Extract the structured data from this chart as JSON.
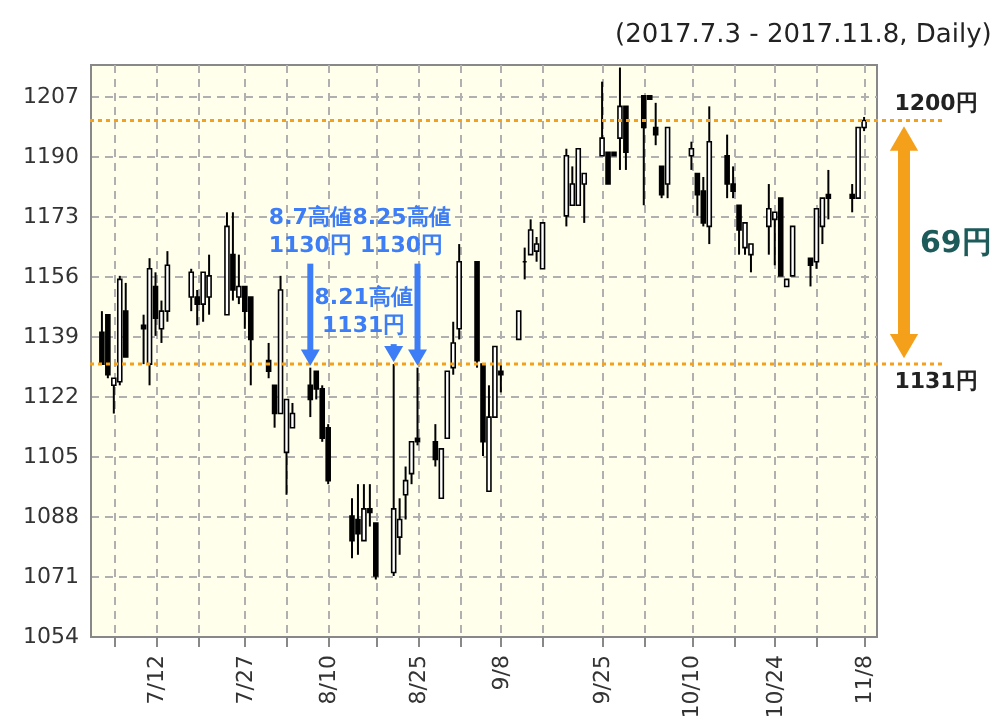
{
  "chart_data": {
    "type": "candlestick",
    "title": "(2017.7.3 - 2017.11.8, Daily)",
    "x": [
      "2017-07-03",
      "2017-07-04",
      "2017-07-05",
      "2017-07-06",
      "2017-07-07",
      "2017-07-10",
      "2017-07-11",
      "2017-07-12",
      "2017-07-13",
      "2017-07-14",
      "2017-07-18",
      "2017-07-19",
      "2017-07-20",
      "2017-07-21",
      "2017-07-24",
      "2017-07-25",
      "2017-07-26",
      "2017-07-27",
      "2017-07-28",
      "2017-07-31",
      "2017-08-01",
      "2017-08-02",
      "2017-08-03",
      "2017-08-04",
      "2017-08-07",
      "2017-08-08",
      "2017-08-09",
      "2017-08-10",
      "2017-08-14",
      "2017-08-15",
      "2017-08-16",
      "2017-08-17",
      "2017-08-18",
      "2017-08-21",
      "2017-08-22",
      "2017-08-23",
      "2017-08-24",
      "2017-08-25",
      "2017-08-28",
      "2017-08-29",
      "2017-08-30",
      "2017-08-31",
      "2017-09-01",
      "2017-09-04",
      "2017-09-05",
      "2017-09-06",
      "2017-09-07",
      "2017-09-08",
      "2017-09-11",
      "2017-09-12",
      "2017-09-13",
      "2017-09-14",
      "2017-09-15",
      "2017-09-19",
      "2017-09-20",
      "2017-09-21",
      "2017-09-22",
      "2017-09-25",
      "2017-09-26",
      "2017-09-27",
      "2017-09-28",
      "2017-09-29",
      "2017-10-02",
      "2017-10-03",
      "2017-10-04",
      "2017-10-05",
      "2017-10-06",
      "2017-10-10",
      "2017-10-11",
      "2017-10-12",
      "2017-10-13",
      "2017-10-16",
      "2017-10-17",
      "2017-10-18",
      "2017-10-19",
      "2017-10-20",
      "2017-10-23",
      "2017-10-24",
      "2017-10-25",
      "2017-10-26",
      "2017-10-27",
      "2017-10-30",
      "2017-10-31",
      "2017-11-01",
      "2017-11-02",
      "2017-11-06",
      "2017-11-07",
      "2017-11-08"
    ],
    "ohlc": [
      [
        1140,
        1146,
        1131,
        1131
      ],
      [
        1145,
        1145,
        1127,
        1128
      ],
      [
        1125,
        1127,
        1117,
        1127
      ],
      [
        1126,
        1156,
        1125,
        1155
      ],
      [
        1146,
        1154,
        1133,
        1133
      ],
      [
        1142,
        1145,
        1131,
        1141
      ],
      [
        1131,
        1161,
        1125,
        1158
      ],
      [
        1153,
        1157,
        1139,
        1144
      ],
      [
        1141,
        1149,
        1137,
        1146
      ],
      [
        1146,
        1163,
        1143,
        1159
      ],
      [
        1150,
        1158,
        1146,
        1157
      ],
      [
        1150,
        1152,
        1142,
        1148
      ],
      [
        1148,
        1157,
        1143,
        1157
      ],
      [
        1150,
        1162,
        1145,
        1156
      ],
      [
        1145,
        1174,
        1145,
        1170
      ],
      [
        1162,
        1174,
        1149,
        1152
      ],
      [
        1150,
        1162,
        1148,
        1153
      ],
      [
        1153,
        1153,
        1141,
        1146
      ],
      [
        1150,
        1150,
        1125,
        1138
      ],
      [
        1132,
        1137,
        1127,
        1129
      ],
      [
        1125,
        1125,
        1113,
        1117
      ],
      [
        1117,
        1156,
        1117,
        1152
      ],
      [
        1106,
        1121,
        1094,
        1121
      ],
      [
        1113,
        1120,
        1113,
        1117
      ],
      [
        1125,
        1130,
        1116,
        1121
      ],
      [
        1129,
        1129,
        1121,
        1124
      ],
      [
        1124,
        1125,
        1109,
        1110
      ],
      [
        1113,
        1114,
        1097,
        1098
      ],
      [
        1088,
        1093,
        1076,
        1081
      ],
      [
        1087,
        1097,
        1077,
        1083
      ],
      [
        1081,
        1097,
        1081,
        1090
      ],
      [
        1090,
        1097,
        1085,
        1089
      ],
      [
        1086,
        1086,
        1070,
        1071
      ],
      [
        1072,
        1131,
        1071,
        1090
      ],
      [
        1082,
        1093,
        1077,
        1087
      ],
      [
        1094,
        1102,
        1087,
        1098
      ],
      [
        1100,
        1109,
        1097,
        1109
      ],
      [
        1110,
        1130,
        1108,
        1109
      ],
      [
        1109,
        1114,
        1102,
        1104
      ],
      [
        1093,
        1107,
        1093,
        1107
      ],
      [
        1110,
        1129,
        1110,
        1129
      ],
      [
        1130,
        1143,
        1128,
        1137
      ],
      [
        1141,
        1165,
        1138,
        1160
      ],
      [
        1160,
        1160,
        1130,
        1132
      ],
      [
        1131,
        1131,
        1105,
        1109
      ],
      [
        1095,
        1125,
        1095,
        1116
      ],
      [
        1116,
        1136,
        1116,
        1136
      ],
      [
        1129,
        1131,
        1123,
        1128
      ],
      [
        1138,
        1146,
        1138,
        1146
      ],
      [
        1160,
        1164,
        1155,
        1160
      ],
      [
        1162,
        1172,
        1162,
        1169
      ],
      [
        1163,
        1167,
        1160,
        1165
      ],
      [
        1158,
        1171,
        1158,
        1171
      ],
      [
        1173,
        1192,
        1170,
        1190
      ],
      [
        1176,
        1187,
        1176,
        1182
      ],
      [
        1176,
        1192,
        1176,
        1192
      ],
      [
        1182,
        1185,
        1171,
        1185
      ],
      [
        1190,
        1211,
        1190,
        1195
      ],
      [
        1191,
        1191,
        1182,
        1182
      ],
      [
        1191,
        1191,
        1190,
        1190
      ],
      [
        1195,
        1215,
        1186,
        1204
      ],
      [
        1204,
        1204,
        1186,
        1191
      ],
      [
        1207,
        1207,
        1176,
        1198
      ],
      [
        1207,
        1207,
        1206,
        1206
      ],
      [
        1198,
        1205,
        1193,
        1196
      ],
      [
        1187,
        1187,
        1178,
        1179
      ],
      [
        1182,
        1198,
        1178,
        1198
      ],
      [
        1190,
        1194,
        1186,
        1192
      ],
      [
        1185,
        1185,
        1173,
        1179
      ],
      [
        1180,
        1184,
        1170,
        1171
      ],
      [
        1170,
        1204,
        1165,
        1194
      ],
      [
        1190,
        1196,
        1178,
        1182
      ],
      [
        1182,
        1187,
        1178,
        1180
      ],
      [
        1176,
        1176,
        1162,
        1169
      ],
      [
        1164,
        1171,
        1162,
        1171
      ],
      [
        1162,
        1165,
        1157,
        1165
      ],
      [
        1170,
        1182,
        1162,
        1175
      ],
      [
        1172,
        1174,
        1159,
        1174
      ],
      [
        1178,
        1178,
        1156,
        1156
      ],
      [
        1153,
        1155,
        1153,
        1155
      ],
      [
        1156,
        1170,
        1156,
        1170
      ],
      [
        1161,
        1161,
        1153,
        1159
      ],
      [
        1160,
        1175,
        1158,
        1175
      ],
      [
        1170,
        1178,
        1165,
        1178
      ],
      [
        1179,
        1186,
        1172,
        1178
      ],
      [
        1179,
        1182,
        1174,
        1178
      ],
      [
        1178,
        1198,
        1178,
        1198
      ],
      [
        1198,
        1201,
        1197,
        1200
      ]
    ],
    "xlim": [
      "2017-07-01",
      "2017-11-10"
    ],
    "ylim": [
      1054,
      1216
    ],
    "yticks": [
      1054,
      1071,
      1088,
      1105,
      1122,
      1139,
      1156,
      1173,
      1190,
      1207
    ],
    "xticks": [
      {
        "value": "2017-07-05",
        "label": null
      },
      {
        "value": "2017-07-12",
        "label": "7/12"
      },
      {
        "value": "2017-07-19",
        "label": null
      },
      {
        "value": "2017-07-27",
        "label": "7/27"
      },
      {
        "value": "2017-08-03",
        "label": null
      },
      {
        "value": "2017-08-10",
        "label": "8/10"
      },
      {
        "value": "2017-08-18",
        "label": null
      },
      {
        "value": "2017-08-25",
        "label": "8/25"
      },
      {
        "value": "2017-09-01",
        "label": null
      },
      {
        "value": "2017-09-08",
        "label": "9/8"
      },
      {
        "value": "2017-09-15",
        "label": null
      },
      {
        "value": "2017-09-25",
        "label": "9/25"
      },
      {
        "value": "2017-10-02",
        "label": null
      },
      {
        "value": "2017-10-10",
        "label": "10/10"
      },
      {
        "value": "2017-10-17",
        "label": null
      },
      {
        "value": "2017-10-24",
        "label": "10/24"
      },
      {
        "value": "2017-10-31",
        "label": null
      },
      {
        "value": "2017-11-08",
        "label": "11/8"
      }
    ],
    "grid": true,
    "annotations": [
      {
        "text": "8.7高値\n1130円",
        "x": "2017-08-07",
        "y": 1130
      },
      {
        "text": "8.21高値\n1131円",
        "x": "2017-08-21",
        "y": 1131
      },
      {
        "text": "8.25高値\n1130円",
        "x": "2017-08-25",
        "y": 1130
      },
      "69円"
    ],
    "ref_lines": [
      {
        "axis": "y",
        "value": 1200,
        "label": "1200円",
        "color": "#f5a01a",
        "line_style": "dotted"
      },
      {
        "axis": "y",
        "value": 1131,
        "label": "1131円",
        "color": "#f5a01a",
        "line_style": "dotted"
      }
    ]
  }
}
